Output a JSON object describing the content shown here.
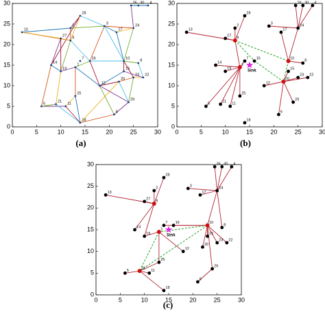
{
  "nodes": [
    {
      "label": "1",
      "x": 13,
      "y": 14.5
    },
    {
      "label": "2",
      "x": 12,
      "y": 24
    },
    {
      "label": "3",
      "x": 19,
      "y": 24.5
    },
    {
      "label": "4",
      "x": 28,
      "y": 29.5
    },
    {
      "label": "5",
      "x": 6,
      "y": 5
    },
    {
      "label": "6",
      "x": 21,
      "y": 3
    },
    {
      "label": "7",
      "x": 14,
      "y": 16
    },
    {
      "label": "8",
      "x": 26,
      "y": 15.5
    },
    {
      "label": "9",
      "x": 12,
      "y": 21
    },
    {
      "label": "10",
      "x": 23,
      "y": 16
    },
    {
      "label": "11",
      "x": 11,
      "y": 5
    },
    {
      "label": "12",
      "x": 18,
      "y": 10
    },
    {
      "label": "13",
      "x": 2,
      "y": 23
    },
    {
      "label": "14",
      "x": 8,
      "y": 15
    },
    {
      "label": "15",
      "x": 23,
      "y": 13.5
    },
    {
      "label": "16",
      "x": 16,
      "y": 16
    },
    {
      "label": "17",
      "x": 21.5,
      "y": 23
    },
    {
      "label": "18",
      "x": 14,
      "y": 1
    },
    {
      "label": "19",
      "x": 10,
      "y": 13.5
    },
    {
      "label": "20",
      "x": 22,
      "y": 11
    },
    {
      "label": "21",
      "x": 9,
      "y": 5.5
    },
    {
      "label": "22",
      "x": 27,
      "y": 12
    },
    {
      "label": "23",
      "x": 25,
      "y": 12
    },
    {
      "label": "24",
      "x": 25,
      "y": 24
    },
    {
      "label": "25",
      "x": 13,
      "y": 7.5
    },
    {
      "label": "26",
      "x": 24.5,
      "y": 29.5
    },
    {
      "label": "27",
      "x": 10,
      "y": 21.5
    },
    {
      "label": "28",
      "x": 14,
      "y": 27
    },
    {
      "label": "29",
      "x": 24,
      "y": 6
    },
    {
      "label": "30",
      "x": 26,
      "y": 29.5
    }
  ],
  "sink": {
    "label": "Sink",
    "x": 15,
    "y": 15
  },
  "xlim": [
    0,
    30
  ],
  "ylim": [
    0,
    30
  ],
  "xticks": [
    0,
    5,
    10,
    15,
    20,
    25,
    30
  ],
  "yticks": [
    0,
    5,
    10,
    15,
    20,
    25,
    30
  ],
  "edge_colors": [
    "#1f77b4",
    "#d95319",
    "#edb120",
    "#7e2f8e",
    "#77ac30",
    "#4dbeee",
    "#a2142f"
  ],
  "panels": [
    {
      "caption": "(a)",
      "show_sink": false,
      "heads": [],
      "dashed": [],
      "edges": [
        [
          13,
          2
        ],
        [
          13,
          9
        ],
        [
          13,
          27
        ],
        [
          2,
          28
        ],
        [
          2,
          3
        ],
        [
          28,
          3
        ],
        [
          28,
          14
        ],
        [
          3,
          17
        ],
        [
          3,
          24
        ],
        [
          17,
          24
        ],
        [
          24,
          26
        ],
        [
          24,
          10
        ],
        [
          26,
          30
        ],
        [
          30,
          4
        ],
        [
          26,
          4
        ],
        [
          2,
          9
        ],
        [
          27,
          9
        ],
        [
          27,
          14
        ],
        [
          9,
          19
        ],
        [
          9,
          16
        ],
        [
          27,
          19
        ],
        [
          14,
          19
        ],
        [
          14,
          5
        ],
        [
          19,
          21
        ],
        [
          19,
          1
        ],
        [
          1,
          16
        ],
        [
          16,
          10
        ],
        [
          16,
          12
        ],
        [
          1,
          12
        ],
        [
          1,
          25
        ],
        [
          25,
          11
        ],
        [
          5,
          11
        ],
        [
          5,
          21
        ],
        [
          21,
          18
        ],
        [
          11,
          18
        ],
        [
          25,
          18
        ],
        [
          18,
          6
        ],
        [
          18,
          20
        ],
        [
          6,
          29
        ],
        [
          29,
          23
        ],
        [
          29,
          20
        ],
        [
          12,
          20
        ],
        [
          12,
          15
        ],
        [
          20,
          23
        ],
        [
          23,
          22
        ],
        [
          15,
          22
        ],
        [
          10,
          8
        ],
        [
          8,
          22
        ],
        [
          15,
          10
        ],
        [
          17,
          10
        ],
        [
          3,
          16
        ],
        [
          28,
          9
        ],
        [
          12,
          29
        ],
        [
          12,
          6
        ],
        [
          3,
          10
        ],
        [
          10,
          23
        ]
      ]
    },
    {
      "caption": "(b)",
      "show_sink": true,
      "heads": [
        9,
        1,
        10,
        20
      ],
      "edges": [
        [
          9,
          13
        ],
        [
          9,
          27
        ],
        [
          9,
          2
        ],
        [
          9,
          28
        ],
        [
          9,
          1
        ],
        [
          1,
          14
        ],
        [
          1,
          19
        ],
        [
          1,
          5
        ],
        [
          1,
          11
        ],
        [
          1,
          25
        ],
        [
          1,
          21
        ],
        [
          1,
          7
        ],
        [
          24,
          3
        ],
        [
          24,
          26
        ],
        [
          24,
          30
        ],
        [
          24,
          4
        ],
        [
          24,
          10
        ],
        [
          10,
          8
        ],
        [
          10,
          17
        ],
        [
          20,
          15
        ],
        [
          20,
          12
        ],
        [
          20,
          23
        ],
        [
          20,
          22
        ],
        [
          20,
          29
        ],
        [
          20,
          6
        ]
      ],
      "dashed": [
        [
          9,
          10
        ],
        [
          10,
          20
        ],
        [
          20,
          16
        ],
        [
          9,
          16
        ]
      ]
    },
    {
      "caption": "(c)",
      "show_sink": true,
      "heads": [
        9,
        1,
        10,
        21
      ],
      "edges": [
        [
          9,
          13
        ],
        [
          9,
          2
        ],
        [
          9,
          28
        ],
        [
          9,
          27
        ],
        [
          9,
          14
        ],
        [
          9,
          19
        ],
        [
          24,
          26
        ],
        [
          24,
          30
        ],
        [
          24,
          4
        ],
        [
          24,
          17
        ],
        [
          24,
          3
        ],
        [
          24,
          8
        ],
        [
          24,
          10
        ],
        [
          10,
          7
        ],
        [
          10,
          16
        ],
        [
          10,
          15
        ],
        [
          10,
          23
        ],
        [
          10,
          22
        ],
        [
          10,
          29
        ],
        [
          10,
          20
        ],
        [
          29,
          6
        ],
        [
          1,
          12
        ],
        [
          1,
          25
        ],
        [
          1,
          19
        ],
        [
          21,
          5
        ],
        [
          21,
          11
        ],
        [
          21,
          18
        ],
        [
          21,
          25
        ]
      ],
      "dashed": [
        [
          10,
          1
        ],
        [
          10,
          21
        ],
        [
          1,
          21
        ]
      ]
    }
  ]
}
